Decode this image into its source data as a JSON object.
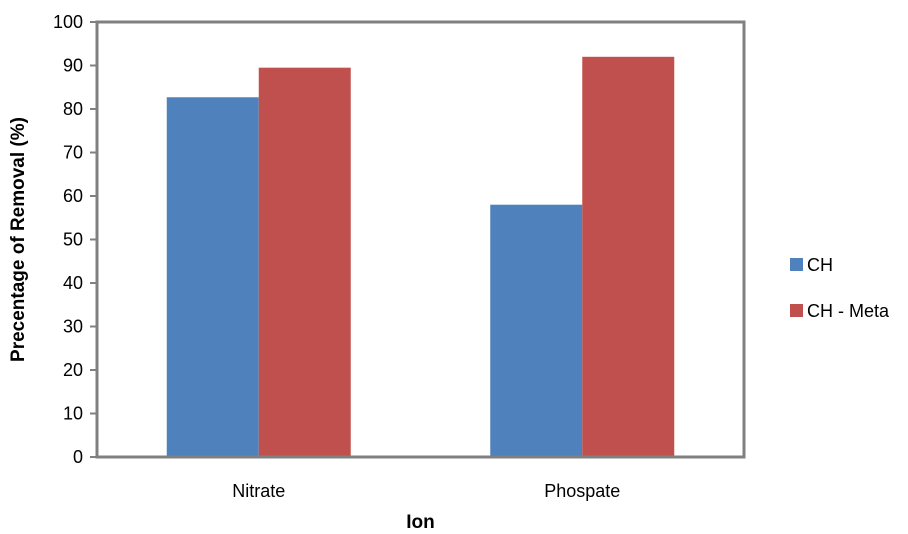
{
  "chart_data": {
    "type": "bar",
    "categories": [
      "Nitrate",
      "Phospate"
    ],
    "series": [
      {
        "name": "CH",
        "values": [
          82.7,
          58.0
        ],
        "color": "#4F81BD"
      },
      {
        "name": "CH - Meta",
        "values": [
          89.5,
          92.0
        ],
        "color": "#C0504D"
      }
    ],
    "xlabel": "Ion",
    "ylabel": "Precentage of Removal (%)",
    "ylim": [
      0,
      100
    ],
    "yticks": [
      "0",
      "10",
      "20",
      "30",
      "40",
      "50",
      "60",
      "70",
      "80",
      "90",
      "100"
    ],
    "grid": false,
    "legend_position": "right"
  }
}
